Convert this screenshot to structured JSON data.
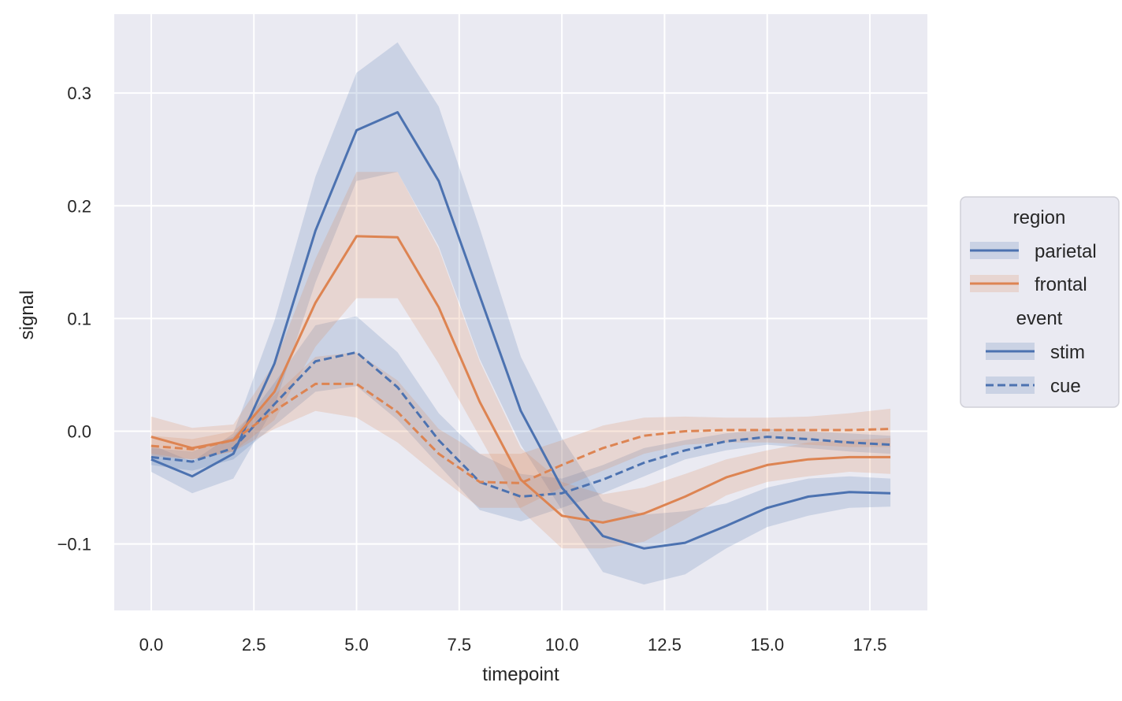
{
  "chart_data": {
    "type": "line",
    "title": "",
    "xlabel": "timepoint",
    "ylabel": "signal",
    "xlim": [
      -0.9,
      18.9
    ],
    "ylim": [
      -0.159,
      0.37
    ],
    "xticks": [
      0.0,
      2.5,
      5.0,
      7.5,
      10.0,
      12.5,
      15.0,
      17.5
    ],
    "xtick_labels": [
      "0.0",
      "2.5",
      "5.0",
      "7.5",
      "10.0",
      "12.5",
      "15.0",
      "17.5"
    ],
    "yticks": [
      -0.1,
      0.0,
      0.1,
      0.2,
      0.3
    ],
    "ytick_labels": [
      "−0.1",
      "0.0",
      "0.1",
      "0.2",
      "0.3"
    ],
    "grid": true,
    "background": "#eaeaf2",
    "legend": {
      "position": "right",
      "hue_title": "region",
      "hue_entries": [
        {
          "label": "parietal",
          "color": "#4c72b0"
        },
        {
          "label": "frontal",
          "color": "#dd8452"
        }
      ],
      "style_title": "event",
      "style_entries": [
        {
          "label": "stim",
          "dash": "solid"
        },
        {
          "label": "cue",
          "dash": "dashed"
        }
      ]
    },
    "x": [
      0,
      1,
      2,
      3,
      4,
      5,
      6,
      7,
      8,
      9,
      10,
      11,
      12,
      13,
      14,
      15,
      16,
      17,
      18
    ],
    "series": [
      {
        "name": "parietal-stim",
        "region": "parietal",
        "event": "stim",
        "color": "#4c72b0",
        "dash": "solid",
        "values": [
          -0.025,
          -0.04,
          -0.02,
          0.06,
          0.178,
          0.267,
          0.283,
          0.222,
          0.12,
          0.018,
          -0.05,
          -0.093,
          -0.104,
          -0.099,
          -0.084,
          -0.068,
          -0.058,
          -0.054,
          -0.055
        ],
        "ci_low": [
          -0.036,
          -0.055,
          -0.042,
          0.022,
          0.132,
          0.222,
          0.23,
          0.164,
          0.064,
          -0.012,
          -0.07,
          -0.125,
          -0.136,
          -0.127,
          -0.104,
          -0.085,
          -0.075,
          -0.068,
          -0.067
        ],
        "ci_high": [
          -0.012,
          -0.027,
          -0.002,
          0.098,
          0.226,
          0.318,
          0.345,
          0.288,
          0.18,
          0.066,
          -0.006,
          -0.062,
          -0.074,
          -0.071,
          -0.064,
          -0.05,
          -0.042,
          -0.04,
          -0.042
        ]
      },
      {
        "name": "parietal-cue",
        "region": "parietal",
        "event": "cue",
        "color": "#4c72b0",
        "dash": "dashed",
        "values": [
          -0.023,
          -0.027,
          -0.015,
          0.024,
          0.062,
          0.07,
          0.039,
          -0.008,
          -0.045,
          -0.058,
          -0.055,
          -0.043,
          -0.028,
          -0.017,
          -0.009,
          -0.005,
          -0.007,
          -0.01,
          -0.012
        ],
        "ci_low": [
          -0.03,
          -0.035,
          -0.025,
          0.005,
          0.035,
          0.04,
          0.01,
          -0.03,
          -0.07,
          -0.08,
          -0.068,
          -0.055,
          -0.04,
          -0.025,
          -0.017,
          -0.012,
          -0.015,
          -0.018,
          -0.02
        ],
        "ci_high": [
          -0.015,
          -0.018,
          -0.005,
          0.043,
          0.094,
          0.102,
          0.07,
          0.016,
          -0.02,
          -0.038,
          -0.042,
          -0.03,
          -0.015,
          -0.008,
          -0.002,
          0.002,
          0.0,
          -0.002,
          -0.004
        ]
      },
      {
        "name": "frontal-stim",
        "region": "frontal",
        "event": "stim",
        "color": "#dd8452",
        "dash": "solid",
        "values": [
          -0.005,
          -0.015,
          -0.008,
          0.035,
          0.114,
          0.173,
          0.172,
          0.11,
          0.026,
          -0.043,
          -0.075,
          -0.081,
          -0.073,
          -0.058,
          -0.041,
          -0.03,
          -0.025,
          -0.023,
          -0.023
        ],
        "ci_low": [
          -0.02,
          -0.025,
          -0.018,
          0.01,
          0.075,
          0.118,
          0.118,
          0.06,
          -0.005,
          -0.07,
          -0.104,
          -0.104,
          -0.098,
          -0.078,
          -0.057,
          -0.045,
          -0.04,
          -0.036,
          -0.038
        ],
        "ci_high": [
          0.013,
          0.003,
          0.006,
          0.06,
          0.153,
          0.23,
          0.23,
          0.162,
          0.062,
          -0.015,
          -0.045,
          -0.056,
          -0.05,
          -0.038,
          -0.025,
          -0.017,
          -0.01,
          -0.008,
          -0.006
        ]
      },
      {
        "name": "frontal-cue",
        "region": "frontal",
        "event": "cue",
        "color": "#dd8452",
        "dash": "dashed",
        "values": [
          -0.013,
          -0.016,
          -0.008,
          0.018,
          0.042,
          0.042,
          0.017,
          -0.02,
          -0.045,
          -0.046,
          -0.03,
          -0.015,
          -0.004,
          0.0,
          0.001,
          0.001,
          0.001,
          0.001,
          0.002
        ],
        "ci_low": [
          -0.022,
          -0.025,
          -0.018,
          0.002,
          0.018,
          0.012,
          -0.01,
          -0.04,
          -0.068,
          -0.068,
          -0.05,
          -0.035,
          -0.02,
          -0.012,
          -0.01,
          -0.01,
          -0.012,
          -0.014,
          -0.014
        ],
        "ci_high": [
          -0.004,
          -0.007,
          0.0,
          0.032,
          0.066,
          0.07,
          0.045,
          0.002,
          -0.02,
          -0.02,
          -0.008,
          0.005,
          0.012,
          0.013,
          0.012,
          0.012,
          0.013,
          0.016,
          0.02
        ]
      }
    ]
  }
}
